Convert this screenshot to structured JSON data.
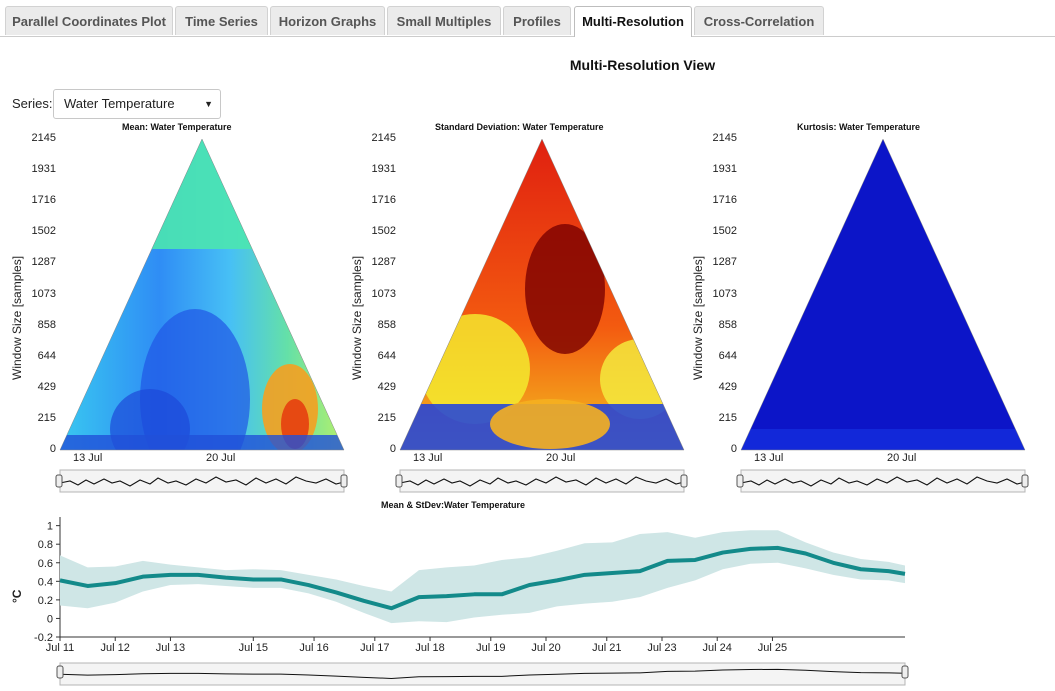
{
  "tabs": [
    {
      "label": "Parallel Coordinates Plot",
      "active": false
    },
    {
      "label": "Time Series",
      "active": false
    },
    {
      "label": "Horizon Graphs",
      "active": false
    },
    {
      "label": "Small Multiples",
      "active": false
    },
    {
      "label": "Profiles",
      "active": false
    },
    {
      "label": "Multi-Resolution",
      "active": true
    },
    {
      "label": "Cross-Correlation",
      "active": false
    }
  ],
  "view_title": "Multi-Resolution View",
  "series_selector": {
    "label": "Series:",
    "value": "Water Temperature"
  },
  "triangles": [
    {
      "title": "Mean: Water Temperature",
      "colormap": "jet-mean"
    },
    {
      "title": "Standard Deviation: Water Temperature",
      "colormap": "jet-stdev"
    },
    {
      "title": "Kurtosis: Water Temperature",
      "colormap": "jet-kurtosis"
    }
  ],
  "triangle_axis": {
    "ylabel": "Window Size [samples]",
    "yticks": [
      "2145",
      "1931",
      "1716",
      "1502",
      "1287",
      "1073",
      "858",
      "644",
      "429",
      "215",
      "0"
    ],
    "xticks": [
      "13 Jul",
      "20 Jul"
    ]
  },
  "chart_data": {
    "type": "area",
    "title": "Mean & StDev:Water Temperature",
    "xlabel": "",
    "ylabel": "°C",
    "ylim": [
      -0.2,
      1.05
    ],
    "yticks": [
      "1",
      "0.8",
      "0.6",
      "0.4",
      "0.2",
      "0",
      "-0.2"
    ],
    "xticks": [
      "Jul 11",
      "Jul 12",
      "Jul 13",
      "Jul 15",
      "Jul 16",
      "Jul 17",
      "Jul 18",
      "Jul 19",
      "Jul 20",
      "Jul 21",
      "Jul 23",
      "Jul 24",
      "Jul 25"
    ],
    "x_days": [
      11.0,
      11.5,
      12.0,
      12.5,
      13.0,
      13.5,
      14.0,
      14.5,
      15.0,
      15.5,
      16.0,
      16.5,
      17.0,
      17.5,
      18.0,
      18.5,
      19.0,
      19.5,
      20.0,
      20.5,
      21.0,
      21.5,
      22.0,
      22.5,
      23.0,
      23.5,
      24.0,
      24.5,
      25.0,
      25.5,
      26.0,
      26.3
    ],
    "series": [
      {
        "name": "mean",
        "values": [
          0.41,
          0.35,
          0.38,
          0.45,
          0.47,
          0.47,
          0.44,
          0.42,
          0.42,
          0.36,
          0.28,
          0.19,
          0.11,
          0.23,
          0.24,
          0.26,
          0.26,
          0.36,
          0.41,
          0.47,
          0.49,
          0.51,
          0.62,
          0.63,
          0.71,
          0.75,
          0.76,
          0.7,
          0.6,
          0.53,
          0.51,
          0.48
        ]
      },
      {
        "name": "stdev_upper",
        "values": [
          0.68,
          0.55,
          0.56,
          0.62,
          0.58,
          0.55,
          0.52,
          0.53,
          0.52,
          0.47,
          0.42,
          0.35,
          0.29,
          0.52,
          0.55,
          0.57,
          0.63,
          0.66,
          0.73,
          0.81,
          0.82,
          0.91,
          0.93,
          0.87,
          0.93,
          0.95,
          0.95,
          0.82,
          0.71,
          0.64,
          0.61,
          0.57
        ]
      },
      {
        "name": "stdev_lower",
        "values": [
          0.14,
          0.11,
          0.17,
          0.29,
          0.36,
          0.37,
          0.35,
          0.33,
          0.33,
          0.27,
          0.18,
          0.06,
          -0.05,
          -0.03,
          -0.04,
          0.01,
          0.04,
          0.06,
          0.13,
          0.16,
          0.18,
          0.23,
          0.33,
          0.41,
          0.53,
          0.59,
          0.6,
          0.54,
          0.47,
          0.42,
          0.41,
          0.38
        ]
      }
    ]
  },
  "colors": {
    "mean_line": "#138a8a",
    "band": "#cfe6e6",
    "tab_bg": "#ebebeb"
  }
}
